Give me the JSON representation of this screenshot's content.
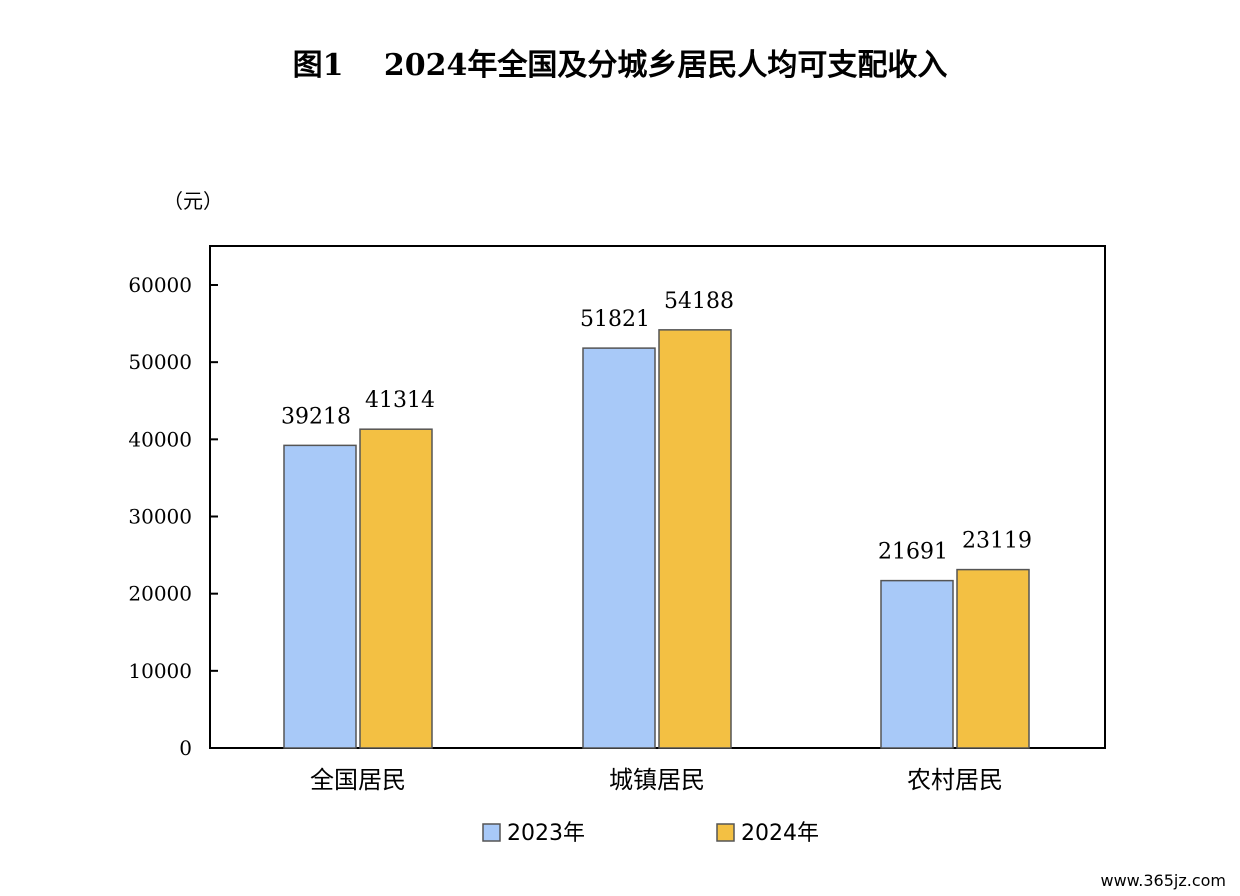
{
  "title": "图1　 2024年全国及分城乡居民人均可支配收入",
  "watermark": "www.365jz.com",
  "chart_data": {
    "type": "bar",
    "title": "图1　 2024年全国及分城乡居民人均可支配收入",
    "unit_label": "（元）",
    "categories": [
      "全国居民",
      "城镇居民",
      "农村居民"
    ],
    "series": [
      {
        "name": "2023年",
        "values": [
          39218,
          51821,
          21691
        ],
        "color": "#a8c9f8"
      },
      {
        "name": "2024年",
        "values": [
          41314,
          54188,
          23119
        ],
        "color": "#f3c043"
      }
    ],
    "ylim": [
      0,
      60000
    ],
    "yticks": [
      "0",
      "10000",
      "20000",
      "30000",
      "40000",
      "50000",
      "60000"
    ],
    "grid": false,
    "legend_position": "bottom"
  }
}
